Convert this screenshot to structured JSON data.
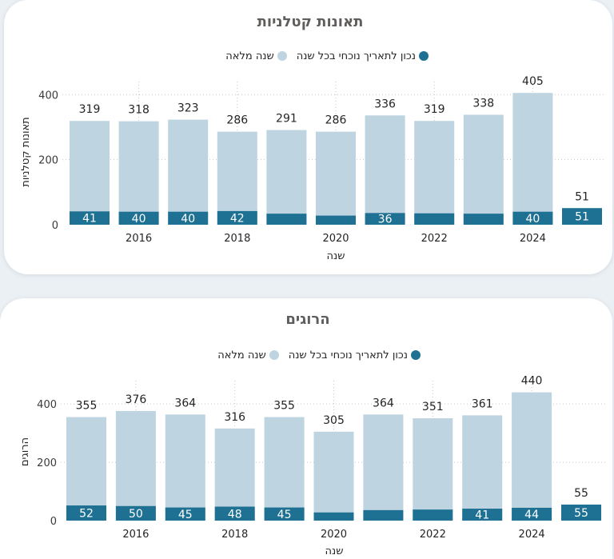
{
  "chart_data": [
    {
      "type": "bar",
      "title": "תאונות קטלניות",
      "xlabel": "שנה",
      "ylabel": "תאונות קטלניות",
      "x": [
        2015,
        2016,
        2017,
        2018,
        2019,
        2020,
        2021,
        2022,
        2023,
        2024,
        2025
      ],
      "xticks": [
        2016,
        2018,
        2020,
        2022,
        2024
      ],
      "yticks": [
        0,
        200,
        400
      ],
      "ylim": [
        0,
        440
      ],
      "grid": true,
      "legend": "top-center",
      "series": [
        {
          "name": "נכון לתאריך נוכחי בכל שנה",
          "color": "#1f7194",
          "values": [
            41,
            40,
            40,
            42,
            34,
            28,
            36,
            35,
            34,
            40,
            51
          ],
          "label_visible": [
            true,
            true,
            true,
            true,
            false,
            false,
            true,
            false,
            false,
            true,
            true
          ]
        },
        {
          "name": "שנה מלאה",
          "color": "#bed4e0",
          "values": [
            319,
            318,
            323,
            286,
            291,
            286,
            336,
            319,
            338,
            405,
            51
          ],
          "label_visible": [
            true,
            true,
            true,
            true,
            true,
            true,
            true,
            true,
            true,
            true,
            true
          ]
        }
      ]
    },
    {
      "type": "bar",
      "title": "הרוגים",
      "xlabel": "שנה",
      "ylabel": "הרוגים",
      "x": [
        2015,
        2016,
        2017,
        2018,
        2019,
        2020,
        2021,
        2022,
        2023,
        2024,
        2025
      ],
      "xticks": [
        2016,
        2018,
        2020,
        2022,
        2024
      ],
      "yticks": [
        0,
        200,
        400
      ],
      "ylim": [
        0,
        480
      ],
      "grid": true,
      "legend": "top-center",
      "series": [
        {
          "name": "נכון לתאריך נוכחי בכל שנה",
          "color": "#1f7194",
          "values": [
            52,
            50,
            45,
            48,
            45,
            28,
            36,
            38,
            41,
            44,
            55
          ],
          "label_visible": [
            true,
            true,
            true,
            true,
            true,
            false,
            false,
            false,
            true,
            true,
            true
          ]
        },
        {
          "name": "שנה מלאה",
          "color": "#bed4e0",
          "values": [
            355,
            376,
            364,
            316,
            355,
            305,
            364,
            351,
            361,
            440,
            55
          ],
          "label_visible": [
            true,
            true,
            true,
            true,
            true,
            true,
            true,
            true,
            true,
            true,
            true
          ]
        }
      ]
    }
  ]
}
